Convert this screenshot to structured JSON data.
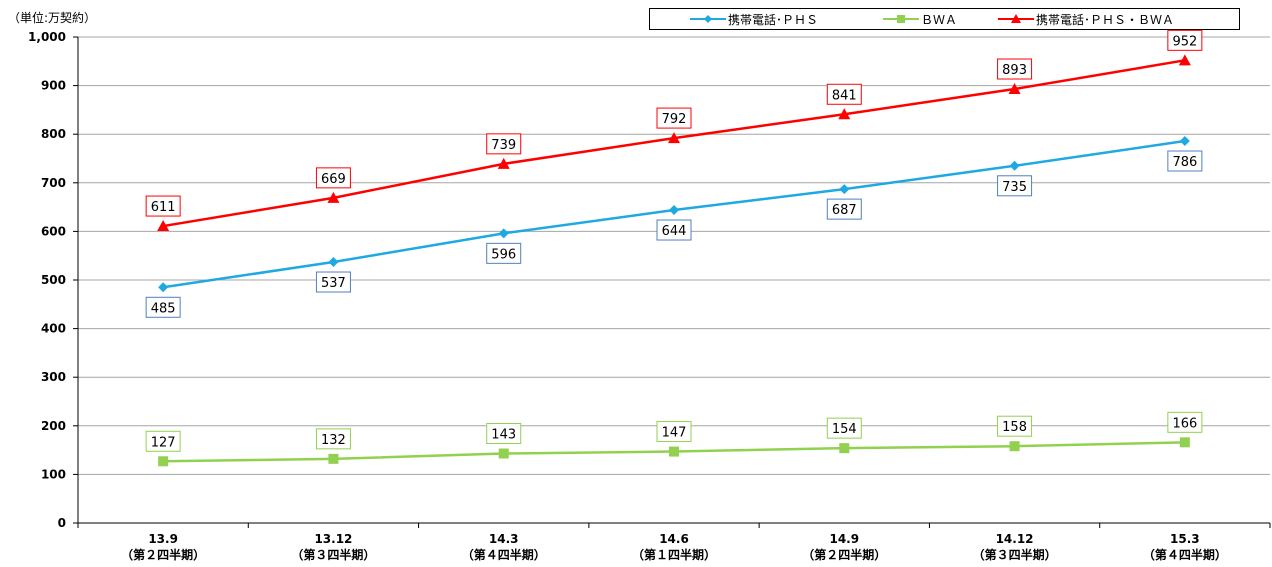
{
  "unit_label": "（単位:万契約）",
  "colors": {
    "series1": "#1FA9E1",
    "series2": "#92D050",
    "series3": "#FF0000",
    "label_border1": "#4F81BD",
    "label_border2": "#92D050",
    "label_border3": "#FF0000",
    "grid": "#A6A6A6"
  },
  "chart_data": {
    "type": "line",
    "categories": [
      [
        "13.9",
        "（第２四半期）"
      ],
      [
        "13.12",
        "（第３四半期）"
      ],
      [
        "14.3",
        "（第４四半期）"
      ],
      [
        "14.6",
        "（第１四半期）"
      ],
      [
        "14.9",
        "（第２四半期）"
      ],
      [
        "14.12",
        "（第３四半期）"
      ],
      [
        "15.3",
        "（第４四半期）"
      ]
    ],
    "ylim": [
      0,
      1000
    ],
    "yticks": [
      0,
      100,
      200,
      300,
      400,
      500,
      600,
      700,
      800,
      900,
      1000
    ],
    "ytick_labels": [
      "0",
      "100",
      "200",
      "300",
      "400",
      "500",
      "600",
      "700",
      "800",
      "900",
      "1,000"
    ],
    "grid": true,
    "legend_position": "top-right",
    "series": [
      {
        "name": "携帯電話･ＰＨＳ",
        "marker": "diamond",
        "values": [
          485,
          537,
          596,
          644,
          687,
          735,
          786
        ],
        "label_position": "below"
      },
      {
        "name": "ＢＷＡ",
        "marker": "square",
        "values": [
          127,
          132,
          143,
          147,
          154,
          158,
          166
        ],
        "label_position": "above"
      },
      {
        "name": "携帯電話･ＰＨＳ・ＢＷＡ",
        "marker": "triangle",
        "values": [
          611,
          669,
          739,
          792,
          841,
          893,
          952
        ],
        "label_position": "above"
      }
    ]
  }
}
